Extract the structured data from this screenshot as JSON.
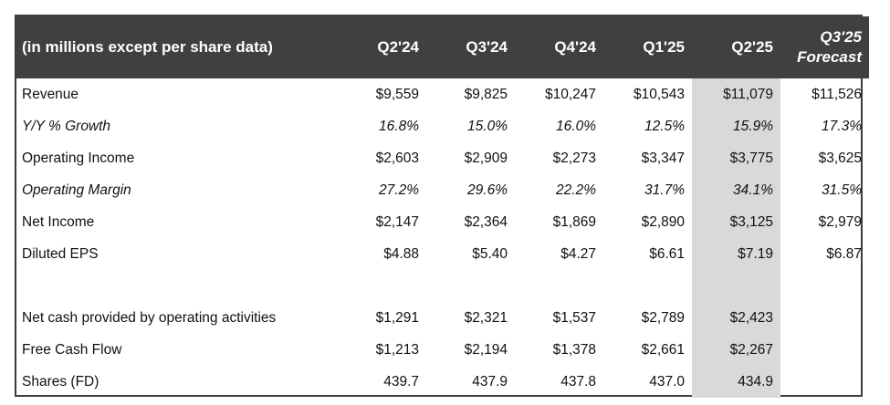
{
  "table": {
    "header_label": "(in millions except per share data)",
    "columns": [
      {
        "line1": "Q2'24",
        "line2": ""
      },
      {
        "line1": "Q3'24",
        "line2": ""
      },
      {
        "line1": "Q4'24",
        "line2": ""
      },
      {
        "line1": "Q1'25",
        "line2": ""
      },
      {
        "line1": "Q2'25",
        "line2": ""
      },
      {
        "line1": "Q3'25",
        "line2": "Forecast"
      }
    ],
    "highlight_color": "#d9d9d9",
    "header_bg": "#404040",
    "rows": [
      {
        "label": "Revenue",
        "values": [
          "$9,559",
          "$9,825",
          "$10,247",
          "$10,543",
          "$11,079",
          "$11,526"
        ]
      },
      {
        "label": "Y/Y % Growth",
        "values": [
          "16.8%",
          "15.0%",
          "16.0%",
          "12.5%",
          "15.9%",
          "17.3%"
        ]
      },
      {
        "label": "Operating Income",
        "values": [
          "$2,603",
          "$2,909",
          "$2,273",
          "$3,347",
          "$3,775",
          "$3,625"
        ]
      },
      {
        "label": "Operating Margin",
        "values": [
          "27.2%",
          "29.6%",
          "22.2%",
          "31.7%",
          "34.1%",
          "31.5%"
        ]
      },
      {
        "label": "Net Income",
        "values": [
          "$2,147",
          "$2,364",
          "$1,869",
          "$2,890",
          "$3,125",
          "$2,979"
        ]
      },
      {
        "label": "Diluted EPS",
        "values": [
          "$4.88",
          "$5.40",
          "$4.27",
          "$6.61",
          "$7.19",
          "$6.87"
        ]
      },
      {
        "label": "",
        "values": [
          "",
          "",
          "",
          "",
          "",
          ""
        ]
      },
      {
        "label": "Net cash provided by operating activities",
        "values": [
          "$1,291",
          "$2,321",
          "$1,537",
          "$2,789",
          "$2,423",
          ""
        ]
      },
      {
        "label": "Free Cash Flow",
        "values": [
          "$1,213",
          "$2,194",
          "$1,378",
          "$2,661",
          "$2,267",
          ""
        ]
      },
      {
        "label": "Shares (FD)",
        "values": [
          "439.7",
          "437.9",
          "437.8",
          "437.0",
          "434.9",
          ""
        ]
      }
    ]
  }
}
